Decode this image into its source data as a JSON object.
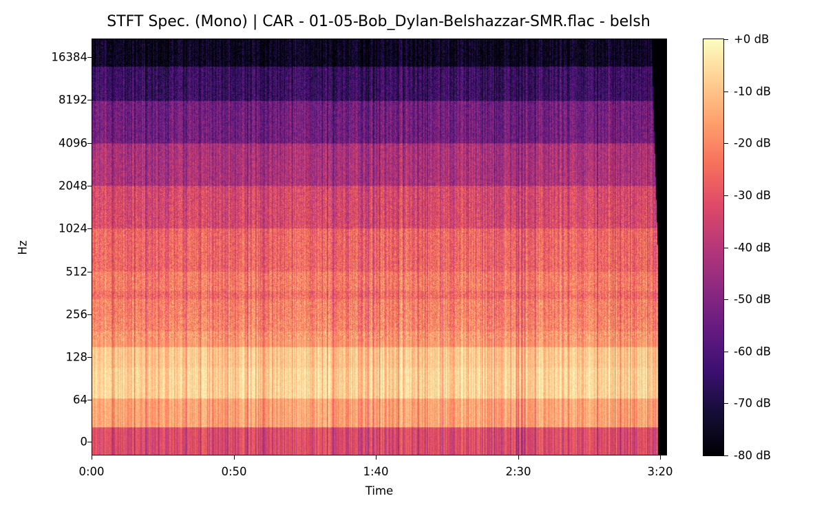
{
  "chart_data": {
    "type": "heatmap",
    "title": "STFT Spec. (Mono) | CAR - 01-05-Bob_Dylan-Belshazzar-SMR.flac - belsh",
    "xlabel": "Time",
    "ylabel": "Hz",
    "x_ticks": [
      {
        "label": "0:00",
        "seconds": 0
      },
      {
        "label": "0:50",
        "seconds": 50
      },
      {
        "label": "1:40",
        "seconds": 100
      },
      {
        "label": "2:30",
        "seconds": 150
      },
      {
        "label": "3:20",
        "seconds": 200
      }
    ],
    "xlim_seconds": [
      0,
      202
    ],
    "audio_end_seconds": 199,
    "y_scale": "log2",
    "y_ticks": [
      {
        "label": "16384",
        "hz": 16384
      },
      {
        "label": "8192",
        "hz": 8192
      },
      {
        "label": "4096",
        "hz": 4096
      },
      {
        "label": "2048",
        "hz": 2048
      },
      {
        "label": "1024",
        "hz": 1024
      },
      {
        "label": "512",
        "hz": 512
      },
      {
        "label": "256",
        "hz": 256
      },
      {
        "label": "128",
        "hz": 128
      },
      {
        "label": "64",
        "hz": 64
      },
      {
        "label": "0",
        "hz": 0
      }
    ],
    "colorbar": {
      "colormap": "magma",
      "ticks": [
        "+0 dB",
        "-10 dB",
        "-20 dB",
        "-30 dB",
        "-40 dB",
        "-50 dB",
        "-60 dB",
        "-70 dB",
        "-80 dB"
      ],
      "range_db": [
        -80,
        0
      ]
    },
    "band_profile": [
      {
        "hz_range": "0-~40",
        "mean_db": -32
      },
      {
        "hz_range": "~40-64",
        "mean_db": -16
      },
      {
        "hz_range": "64-~110",
        "mean_db": -8
      },
      {
        "hz_range": "~110-~150",
        "mean_db": -10
      },
      {
        "hz_range": "~150-~200",
        "mean_db": -17
      },
      {
        "hz_range": "200-512",
        "mean_db": -22
      },
      {
        "hz_range": "512-1024",
        "mean_db": -26
      },
      {
        "hz_range": "1024-2048",
        "mean_db": -33
      },
      {
        "hz_range": "2048-4096",
        "mean_db": -42
      },
      {
        "hz_range": "4096-8192",
        "mean_db": -54
      },
      {
        "hz_range": "8192-16384",
        "mean_db": -64
      },
      {
        "hz_range": ">16384",
        "mean_db": -75
      }
    ]
  }
}
